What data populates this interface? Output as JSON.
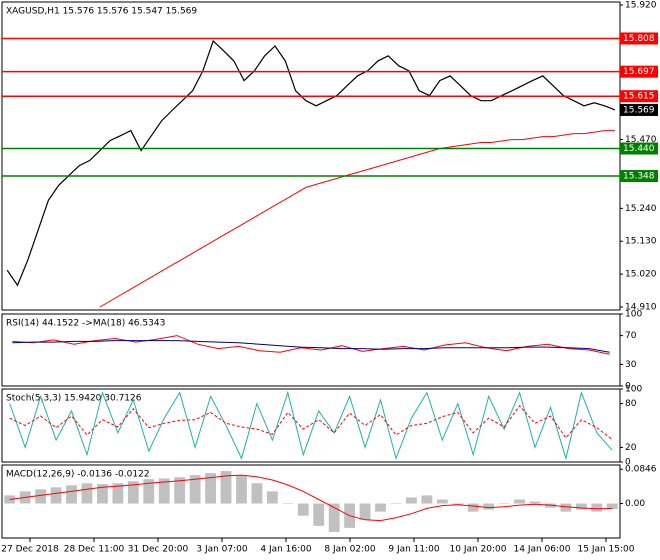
{
  "chart_data": [
    {
      "type": "line",
      "title": "XAGUSD,H1  15.576 15.576 15.547 15.569",
      "ylim": [
        14.9,
        15.93
      ],
      "yticks": [
        {
          "value": 15.92,
          "label": "15.920"
        },
        {
          "value": 15.47,
          "label": "15.470"
        },
        {
          "value": 15.24,
          "label": "15.240"
        },
        {
          "value": 15.13,
          "label": "15.130"
        },
        {
          "value": 15.02,
          "label": "15.020"
        },
        {
          "value": 14.91,
          "label": "14.910"
        }
      ],
      "xticks": [
        "27 Dec 2018",
        "28 Dec 11:00",
        "31 Dec 20:00",
        "3 Jan 07:00",
        "4 Jan 16:00",
        "8 Jan 02:00",
        "9 Jan 11:00",
        "10 Jan 20:00",
        "14 Jan 06:00",
        "15 Jan 15:00"
      ],
      "levels": [
        {
          "value": 15.808,
          "label": "15.808",
          "color": "#ff0000"
        },
        {
          "value": 15.697,
          "label": "15.697",
          "color": "#ff0000"
        },
        {
          "value": 15.615,
          "label": "15.615",
          "color": "#ff0000"
        },
        {
          "value": 15.44,
          "label": "15.440",
          "color": "#008000"
        },
        {
          "value": 15.348,
          "label": "15.348",
          "color": "#008000"
        }
      ],
      "current": {
        "value": 15.569,
        "label": "15.569"
      },
      "series": [
        {
          "name": "XAGUSD",
          "color": "#000000",
          "values": [
            15.033,
            14.983,
            15.067,
            15.167,
            15.267,
            15.317,
            15.35,
            15.383,
            15.4,
            15.433,
            15.467,
            15.483,
            15.5,
            15.433,
            15.483,
            15.533,
            15.567,
            15.6,
            15.633,
            15.7,
            15.8,
            15.767,
            15.733,
            15.667,
            15.7,
            15.75,
            15.783,
            15.733,
            15.633,
            15.6,
            15.583,
            15.6,
            15.617,
            15.65,
            15.683,
            15.7,
            15.733,
            15.75,
            15.717,
            15.7,
            15.633,
            15.617,
            15.667,
            15.683,
            15.65,
            15.617,
            15.6,
            15.6,
            15.617,
            15.633,
            15.65,
            15.667,
            15.683,
            15.65,
            15.617,
            15.6,
            15.583,
            15.593,
            15.583,
            15.569
          ]
        },
        {
          "name": "MA",
          "color": "#ff0000",
          "values": [
            null,
            null,
            null,
            null,
            null,
            null,
            null,
            null,
            null,
            14.91,
            14.93,
            14.95,
            14.97,
            14.99,
            15.01,
            15.03,
            15.05,
            15.07,
            15.09,
            15.11,
            15.13,
            15.15,
            15.17,
            15.19,
            15.21,
            15.23,
            15.25,
            15.27,
            15.29,
            15.31,
            15.32,
            15.33,
            15.34,
            15.35,
            15.36,
            15.37,
            15.38,
            15.39,
            15.4,
            15.41,
            15.42,
            15.43,
            15.44,
            15.445,
            15.45,
            15.455,
            15.46,
            15.46,
            15.465,
            15.47,
            15.47,
            15.475,
            15.48,
            15.48,
            15.485,
            15.49,
            15.49,
            15.495,
            15.5,
            15.5
          ]
        }
      ]
    },
    {
      "type": "line",
      "title": "RSI(14) 44.1522  ->MA(18) 46.5343",
      "ylim": [
        0,
        100
      ],
      "yticks": [
        100,
        70,
        30,
        0
      ],
      "series": [
        {
          "name": "RSI",
          "color": "#ff0000",
          "values": [
            62,
            60,
            64,
            58,
            63,
            66,
            61,
            65,
            70,
            58,
            52,
            55,
            49,
            47,
            53,
            50,
            56,
            48,
            52,
            55,
            50,
            57,
            60,
            53,
            49,
            55,
            58,
            52,
            50,
            44
          ]
        },
        {
          "name": "MA",
          "color": "#000080",
          "values": [
            60,
            61,
            61,
            62,
            62,
            63,
            63,
            63,
            63,
            62,
            61,
            60,
            58,
            56,
            54,
            53,
            52,
            52,
            51,
            52,
            52,
            53,
            53,
            53,
            53,
            54,
            54,
            53,
            52,
            47
          ]
        }
      ]
    },
    {
      "type": "line",
      "title": "Stoch(5,3,3) 15.9420 30.7126",
      "ylim": [
        0,
        100
      ],
      "yticks": [
        100,
        80,
        20,
        0
      ],
      "series": [
        {
          "name": "Main",
          "color": "#20b2aa",
          "values": [
            80,
            20,
            90,
            30,
            70,
            10,
            95,
            40,
            85,
            15,
            60,
            95,
            20,
            90,
            50,
            5,
            80,
            30,
            95,
            10,
            70,
            40,
            90,
            20,
            85,
            5,
            60,
            95,
            30,
            80,
            10,
            90,
            45,
            95,
            20,
            75,
            5,
            95,
            40,
            16
          ]
        },
        {
          "name": "Signal",
          "color": "#ff0000",
          "dash": true,
          "values": [
            60,
            50,
            63,
            47,
            63,
            37,
            58,
            48,
            73,
            47,
            53,
            57,
            58,
            68,
            53,
            48,
            45,
            38,
            68,
            45,
            58,
            40,
            67,
            50,
            65,
            37,
            50,
            53,
            62,
            68,
            40,
            60,
            48,
            77,
            53,
            63,
            33,
            58,
            47,
            31
          ]
        }
      ]
    },
    {
      "type": "bar",
      "title": "MACD(12,26,9) -0.0136 -0.0122",
      "ylim": [
        -0.085,
        0.095
      ],
      "yticks": [
        {
          "value": 0.0846,
          "label": "0.0846"
        },
        {
          "value": 0,
          "label": "0.00"
        }
      ],
      "series": [
        {
          "name": "MACD",
          "color": "#c0c0c0",
          "values": [
            0.02,
            0.03,
            0.035,
            0.04,
            0.045,
            0.05,
            0.048,
            0.05,
            0.055,
            0.06,
            0.062,
            0.065,
            0.07,
            0.075,
            0.08,
            0.07,
            0.05,
            0.03,
            0.0,
            -0.03,
            -0.055,
            -0.07,
            -0.06,
            -0.04,
            -0.02,
            0.0,
            0.015,
            0.02,
            0.01,
            -0.005,
            -0.02,
            -0.015,
            0.0,
            0.01,
            0.005,
            -0.01,
            -0.02,
            -0.015,
            -0.02,
            -0.0136
          ]
        },
        {
          "name": "Signal",
          "color": "#ff0000",
          "values": [
            0.01,
            0.015,
            0.02,
            0.025,
            0.03,
            0.035,
            0.04,
            0.043,
            0.046,
            0.05,
            0.053,
            0.056,
            0.06,
            0.064,
            0.068,
            0.07,
            0.066,
            0.058,
            0.046,
            0.03,
            0.01,
            -0.01,
            -0.03,
            -0.04,
            -0.042,
            -0.035,
            -0.025,
            -0.012,
            -0.005,
            -0.003,
            -0.006,
            -0.01,
            -0.008,
            -0.004,
            -0.002,
            -0.004,
            -0.008,
            -0.011,
            -0.013,
            -0.0122
          ]
        }
      ]
    }
  ]
}
